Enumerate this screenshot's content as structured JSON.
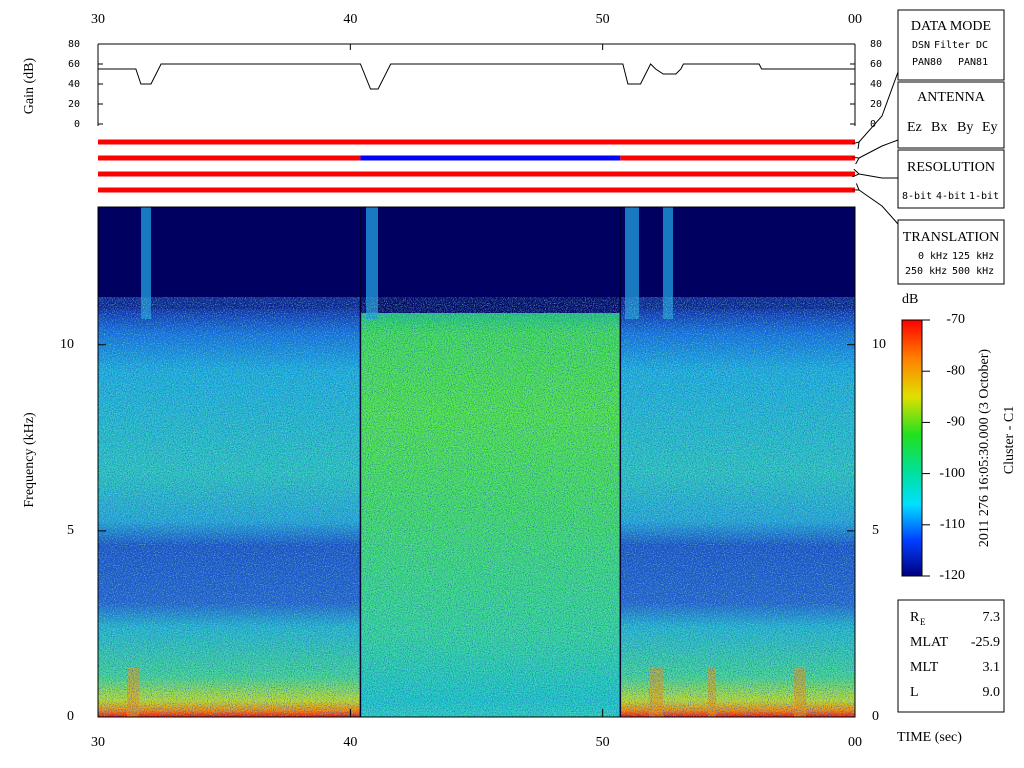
{
  "chart_data": [
    {
      "type": "line",
      "ylabel": "Gain (dB)",
      "xlim": [
        30,
        60
      ],
      "xticks": [
        30,
        40,
        50,
        {
          "value": 60,
          "label": "00"
        }
      ],
      "ylim": [
        0,
        80
      ],
      "yticks": [
        0,
        20,
        40,
        60,
        80
      ],
      "series": [
        {
          "color": "#000000",
          "x": [
            30,
            31.5,
            31.7,
            32.1,
            32.5,
            40.4,
            40.8,
            41.1,
            41.6,
            50.8,
            51.0,
            51.5,
            51.9,
            52.1,
            52.4,
            52.9,
            53.1,
            53.2,
            56.2,
            56.3,
            60
          ],
          "values": [
            55,
            55,
            40,
            40,
            60,
            60,
            35,
            35,
            60,
            60,
            40,
            40,
            60,
            55,
            50,
            50,
            55,
            60,
            60,
            55,
            55
          ]
        }
      ]
    },
    {
      "type": "spectrogram",
      "ylabel": "Frequency (kHz)",
      "xlabel": "TIME (sec)",
      "xlim": [
        30,
        60
      ],
      "xticks": [
        30,
        40,
        50,
        {
          "value": 60,
          "label": "00"
        }
      ],
      "ylim": [
        0,
        13.7
      ],
      "yticks": [
        0,
        5,
        10
      ],
      "colorbar": {
        "label": "dB",
        "lim": [
          -120,
          -70
        ],
        "ticks": [
          -70,
          -80,
          -90,
          -100,
          -110,
          -120
        ]
      }
    }
  ],
  "status_bars": [
    {
      "segments": [
        {
          "start": 30,
          "end": 60,
          "color": "#ff0000"
        }
      ]
    },
    {
      "segments": [
        {
          "start": 30,
          "end": 40.4,
          "color": "#ff0000"
        },
        {
          "start": 40.4,
          "end": 50.7,
          "color": "#0000ff"
        },
        {
          "start": 50.7,
          "end": 60,
          "color": "#ff0000"
        }
      ]
    },
    {
      "segments": [
        {
          "start": 30,
          "end": 60,
          "color": "#ff0000"
        }
      ]
    },
    {
      "segments": [
        {
          "start": 30,
          "end": 60,
          "color": "#ff0000"
        }
      ]
    }
  ],
  "legend_boxes": [
    {
      "title": "DATA MODE",
      "rows": [
        [
          {
            "text": "DSN",
            "color": "#ff0000"
          },
          {
            "text": "Filter",
            "color": "#00cc00"
          },
          {
            "text": "DC",
            "color": "#0000ff"
          }
        ],
        [
          {
            "text": "PAN80",
            "color": "#000000"
          },
          {
            "text": "PAN81",
            "color": "#00cccc"
          }
        ]
      ]
    },
    {
      "title": "ANTENNA",
      "rows": [
        [
          {
            "text": "Ez",
            "color": "#ff0000"
          },
          {
            "text": "Bx",
            "color": "#00cc00"
          },
          {
            "text": "By",
            "color": "#0000ff"
          },
          {
            "text": "Ey",
            "color": "#000000"
          }
        ]
      ]
    },
    {
      "title": "RESOLUTION",
      "rows": [
        [
          {
            "text": "8-bit",
            "color": "#ff0000"
          },
          {
            "text": "4-bit",
            "color": "#00cc00"
          },
          {
            "text": "1-bit",
            "color": "#0000ff"
          }
        ]
      ]
    },
    {
      "title": "TRANSLATION",
      "rows": [
        [
          {
            "text": "0 kHz",
            "color": "#ff0000"
          },
          {
            "text": "125 kHz",
            "color": "#00cc00"
          }
        ],
        [
          {
            "text": "250 kHz",
            "color": "#0000ff"
          },
          {
            "text": "500 kHz",
            "color": "#000000"
          }
        ]
      ]
    }
  ],
  "info_table": {
    "rows": [
      {
        "label": "R",
        "sub": "E",
        "value": "7.3"
      },
      {
        "label": "MLAT",
        "value": "-25.9"
      },
      {
        "label": "MLT",
        "value": "3.1"
      },
      {
        "label": "L",
        "value": "9.0"
      }
    ]
  },
  "annotations": {
    "date": "2011 276 16:05:30.000 (3 October)",
    "spacecraft": "Cluster - C1"
  }
}
